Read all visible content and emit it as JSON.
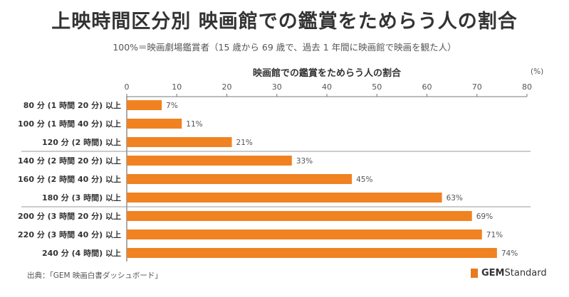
{
  "title": "上映時間区分別 映画館での鑑賞をためらう人の割合",
  "subtitle": "100%＝映画劇場鑑賞者（15 歳から 69 歳で、過去 1 年間に映画館で映画を観た人）",
  "source": "出典：｢GEM 映画白書ダッシュボード｣",
  "logo": {
    "bold": "GEM",
    "rest": "Standard"
  },
  "colors": {
    "bar": "#f08222",
    "axis": "#555555"
  },
  "chart_data": {
    "type": "bar",
    "orientation": "horizontal",
    "title": "映画館での鑑賞をためらう人の割合",
    "unit_label": "(%)",
    "xlim": [
      0,
      80
    ],
    "xticks": [
      0,
      10,
      20,
      30,
      40,
      50,
      60,
      70,
      80
    ],
    "categories": [
      "80 分 (1 時間 20 分) 以上",
      "100 分 (1 時間 40 分) 以上",
      "120 分 (2 時間) 以上",
      "140 分 (2 時間 20 分) 以上",
      "160 分 (2 時間 40 分) 以上",
      "180 分 (3 時間) 以上",
      "200 分 (3 時間 20 分) 以上",
      "220 分 (3 時間 40 分) 以上",
      "240 分 (4 時間) 以上"
    ],
    "values": [
      7,
      11,
      21,
      33,
      45,
      63,
      69,
      71,
      74
    ],
    "data_labels": [
      "7%",
      "11%",
      "21%",
      "33%",
      "45%",
      "63%",
      "69%",
      "71%",
      "74%"
    ],
    "group_separators_after": [
      2,
      5
    ],
    "grid": false
  }
}
